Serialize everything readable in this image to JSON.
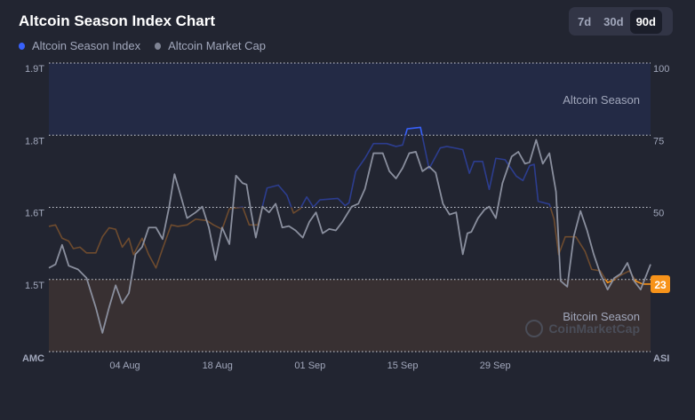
{
  "title": "Altcoin Season Index Chart",
  "tabs": [
    {
      "label": "7d",
      "active": false
    },
    {
      "label": "30d",
      "active": false
    },
    {
      "label": "90d",
      "active": true
    }
  ],
  "legend": [
    {
      "label": "Altcoin Season Index",
      "color": "#3861fb"
    },
    {
      "label": "Altcoin Market Cap",
      "color": "#7f8494"
    }
  ],
  "chart_data": {
    "type": "line",
    "title": "Altcoin Season Index Chart",
    "left_axis": {
      "label": "AMC",
      "ticks": [
        {
          "label": "1.9T",
          "value": 1.9
        },
        {
          "label": "1.8T",
          "value": 1.8
        },
        {
          "label": "1.6T",
          "value": 1.6
        },
        {
          "label": "1.5T",
          "value": 1.5
        }
      ]
    },
    "right_axis": {
      "label": "ASI",
      "ylim": [
        0,
        100
      ],
      "ticks": [
        {
          "label": "100",
          "value": 100
        },
        {
          "label": "75",
          "value": 75
        },
        {
          "label": "50",
          "value": 50
        }
      ]
    },
    "x_ticks": [
      {
        "label": "04 Aug",
        "day": 11.5
      },
      {
        "label": "18 Aug",
        "day": 25.5
      },
      {
        "label": "01 Sep",
        "day": 39.5
      },
      {
        "label": "15 Sep",
        "day": 53.5
      },
      {
        "label": "29 Sep",
        "day": 67.5
      }
    ],
    "xlim_days": [
      0,
      91
    ],
    "zones": [
      {
        "label": "Altcoin Season",
        "from": 75,
        "to": 100,
        "color": "#232a45"
      },
      {
        "label": "Bitcoin Season",
        "from": 0,
        "to": 25,
        "color": "#383032"
      }
    ],
    "current_value": "23",
    "series": [
      {
        "name": "Altcoin Season Index",
        "axis": "right",
        "points": [
          [
            0,
            43.4
          ],
          [
            1,
            43.9
          ],
          [
            2,
            39.3
          ],
          [
            3,
            38.3
          ],
          [
            3.7,
            35.7
          ],
          [
            4.7,
            36.2
          ],
          [
            5.7,
            34.2
          ],
          [
            7.1,
            34.2
          ],
          [
            8.1,
            39.8
          ],
          [
            9.1,
            42.9
          ],
          [
            10.1,
            42.4
          ],
          [
            11.1,
            36.2
          ],
          [
            12.1,
            39.3
          ],
          [
            12.8,
            33.6
          ],
          [
            14.1,
            39.3
          ],
          [
            15.1,
            33.6
          ],
          [
            16.2,
            29.0
          ],
          [
            17.2,
            35.7
          ],
          [
            18.5,
            43.9
          ],
          [
            19.5,
            43.4
          ],
          [
            20.9,
            43.9
          ],
          [
            22.2,
            45.9
          ],
          [
            23.9,
            45.4
          ],
          [
            24.9,
            43.9
          ],
          [
            26.2,
            42.4
          ],
          [
            27.3,
            49.5
          ],
          [
            29.3,
            50.1
          ],
          [
            30.3,
            43.9
          ],
          [
            31.6,
            43.9
          ],
          [
            33.0,
            56.7
          ],
          [
            34.7,
            57.7
          ],
          [
            36.0,
            54.2
          ],
          [
            37.0,
            48.0
          ],
          [
            38.0,
            49.5
          ],
          [
            39.0,
            53.6
          ],
          [
            40.0,
            50.1
          ],
          [
            41.0,
            52.6
          ],
          [
            43.7,
            53.1
          ],
          [
            44.8,
            50.6
          ],
          [
            45.4,
            51.6
          ],
          [
            46.4,
            62.4
          ],
          [
            47.8,
            67.0
          ],
          [
            49.1,
            72.1
          ],
          [
            51.1,
            72.1
          ],
          [
            52.5,
            71.1
          ],
          [
            53.5,
            71.6
          ],
          [
            54.2,
            77.2
          ],
          [
            56.2,
            77.7
          ],
          [
            57.5,
            63.4
          ],
          [
            59.2,
            70.6
          ],
          [
            60.2,
            71.1
          ],
          [
            62.6,
            70.0
          ],
          [
            63.6,
            61.8
          ],
          [
            64.3,
            65.9
          ],
          [
            65.6,
            65.9
          ],
          [
            66.6,
            56.2
          ],
          [
            67.6,
            67.0
          ],
          [
            69.0,
            66.5
          ],
          [
            70.7,
            60.8
          ],
          [
            71.7,
            59.3
          ],
          [
            72.7,
            64.4
          ],
          [
            73.4,
            64.9
          ],
          [
            74.0,
            52.1
          ],
          [
            75.7,
            51.1
          ],
          [
            76.4,
            45.9
          ],
          [
            77.1,
            33.6
          ],
          [
            78.1,
            39.8
          ],
          [
            79.7,
            39.8
          ],
          [
            81.1,
            34.7
          ],
          [
            82.1,
            28.5
          ],
          [
            83.4,
            28.0
          ],
          [
            84.5,
            23.9
          ],
          [
            85.5,
            24.9
          ],
          [
            86.5,
            26.5
          ],
          [
            87.8,
            28.0
          ],
          [
            88.8,
            24.4
          ],
          [
            89.8,
            23.4
          ],
          [
            91.0,
            23.4
          ]
        ]
      },
      {
        "name": "Altcoin Market Cap",
        "axis": "left",
        "points": [
          [
            0,
            1.516
          ],
          [
            1,
            1.521
          ],
          [
            2,
            1.548
          ],
          [
            3,
            1.519
          ],
          [
            4.4,
            1.514
          ],
          [
            5.7,
            1.502
          ],
          [
            7.1,
            1.461
          ],
          [
            8.1,
            1.426
          ],
          [
            9.1,
            1.461
          ],
          [
            10.1,
            1.492
          ],
          [
            11.1,
            1.467
          ],
          [
            12.1,
            1.481
          ],
          [
            13.1,
            1.535
          ],
          [
            14.1,
            1.545
          ],
          [
            15.1,
            1.572
          ],
          [
            16.2,
            1.572
          ],
          [
            17.2,
            1.556
          ],
          [
            18.2,
            1.602
          ],
          [
            19.0,
            1.692
          ],
          [
            19.9,
            1.635
          ],
          [
            20.9,
            1.585
          ],
          [
            22.2,
            1.593
          ],
          [
            23.2,
            1.602
          ],
          [
            24.2,
            1.572
          ],
          [
            25.2,
            1.527
          ],
          [
            26.2,
            1.572
          ],
          [
            27.3,
            1.549
          ],
          [
            28.3,
            1.688
          ],
          [
            29.3,
            1.667
          ],
          [
            29.9,
            1.663
          ],
          [
            30.6,
            1.593
          ],
          [
            31.3,
            1.558
          ],
          [
            32.3,
            1.602
          ],
          [
            33.3,
            1.593
          ],
          [
            34.3,
            1.61
          ],
          [
            35.3,
            1.572
          ],
          [
            36.3,
            1.574
          ],
          [
            37.3,
            1.568
          ],
          [
            38.4,
            1.558
          ],
          [
            39.4,
            1.58
          ],
          [
            40.4,
            1.593
          ],
          [
            41.4,
            1.564
          ],
          [
            42.4,
            1.57
          ],
          [
            43.4,
            1.568
          ],
          [
            44.4,
            1.58
          ],
          [
            45.8,
            1.602
          ],
          [
            46.8,
            1.61
          ],
          [
            47.8,
            1.651
          ],
          [
            49.1,
            1.75
          ],
          [
            50.5,
            1.75
          ],
          [
            51.5,
            1.7
          ],
          [
            52.5,
            1.68
          ],
          [
            53.5,
            1.709
          ],
          [
            54.5,
            1.75
          ],
          [
            55.5,
            1.754
          ],
          [
            56.5,
            1.7
          ],
          [
            57.5,
            1.713
          ],
          [
            58.5,
            1.696
          ],
          [
            59.6,
            1.61
          ],
          [
            60.6,
            1.59
          ],
          [
            61.6,
            1.593
          ],
          [
            62.6,
            1.535
          ],
          [
            63.3,
            1.564
          ],
          [
            63.9,
            1.566
          ],
          [
            64.9,
            1.585
          ],
          [
            65.9,
            1.597
          ],
          [
            66.6,
            1.602
          ],
          [
            67.6,
            1.585
          ],
          [
            68.6,
            1.667
          ],
          [
            70.0,
            1.741
          ],
          [
            71.0,
            1.754
          ],
          [
            72.0,
            1.721
          ],
          [
            72.7,
            1.725
          ],
          [
            73.7,
            1.787
          ],
          [
            74.7,
            1.721
          ],
          [
            75.7,
            1.75
          ],
          [
            76.7,
            1.643
          ],
          [
            77.4,
            1.498
          ],
          [
            78.4,
            1.49
          ],
          [
            79.4,
            1.56
          ],
          [
            80.4,
            1.595
          ],
          [
            81.4,
            1.568
          ],
          [
            82.4,
            1.535
          ],
          [
            83.4,
            1.508
          ],
          [
            84.5,
            1.486
          ],
          [
            85.5,
            1.502
          ],
          [
            86.5,
            1.508
          ],
          [
            87.5,
            1.523
          ],
          [
            88.5,
            1.498
          ],
          [
            89.5,
            1.486
          ],
          [
            91.0,
            1.521
          ]
        ]
      }
    ]
  },
  "watermark": "CoinMarketCap"
}
